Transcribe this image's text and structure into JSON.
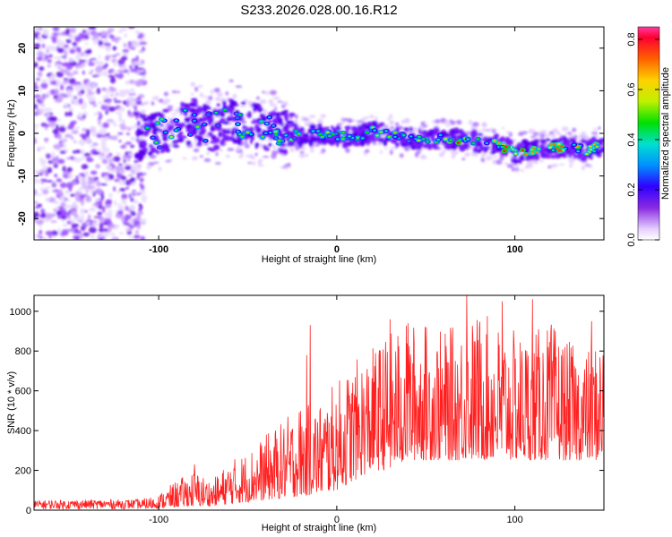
{
  "title": "S233.2026.028.00.16.R12",
  "chart_data": [
    {
      "type": "heatmap",
      "xlabel": "Height of straight line (km)",
      "ylabel": "Frequency (Hz)",
      "xlim": [
        -170,
        150
      ],
      "ylim": [
        -25,
        25
      ],
      "x_ticks": [
        -100,
        0,
        100
      ],
      "y_ticks": [
        -20,
        -10,
        0,
        10,
        20
      ],
      "colorbar": {
        "label": "Normalized spectral amplitude",
        "range": [
          0.0,
          0.85
        ],
        "ticks": [
          0.0,
          0.2,
          0.4,
          0.6,
          0.8
        ]
      },
      "ridge": [
        {
          "x": -110,
          "f": -1.0
        },
        {
          "x": -100,
          "f": 0.0
        },
        {
          "x": -90,
          "f": 1.5
        },
        {
          "x": -80,
          "f": 3.0
        },
        {
          "x": -70,
          "f": 1.0
        },
        {
          "x": -60,
          "f": 3.5
        },
        {
          "x": -45,
          "f": 1.5
        },
        {
          "x": -35,
          "f": 1.0
        },
        {
          "x": -25,
          "f": 0.0
        },
        {
          "x": -20,
          "f": -1.0
        },
        {
          "x": -10,
          "f": 0.0
        },
        {
          "x": 0,
          "f": -0.5
        },
        {
          "x": 10,
          "f": -1.0
        },
        {
          "x": 20,
          "f": 0.5
        },
        {
          "x": 30,
          "f": -0.5
        },
        {
          "x": 40,
          "f": -1.0
        },
        {
          "x": 50,
          "f": -1.5
        },
        {
          "x": 60,
          "f": -1.0
        },
        {
          "x": 70,
          "f": -1.5
        },
        {
          "x": 80,
          "f": -2.0
        },
        {
          "x": 90,
          "f": -2.5
        },
        {
          "x": 100,
          "f": -4.5
        },
        {
          "x": 110,
          "f": -4.0
        },
        {
          "x": 120,
          "f": -3.5
        },
        {
          "x": 130,
          "f": -3.0
        },
        {
          "x": 140,
          "f": -4.0
        },
        {
          "x": 148,
          "f": -3.0
        }
      ]
    },
    {
      "type": "line",
      "xlabel": "Height of straight line (km)",
      "ylabel": "SNR (10 * v/v)",
      "xlim": [
        -170,
        150
      ],
      "ylim": [
        0,
        1080
      ],
      "x_ticks": [
        -100,
        0,
        100
      ],
      "y_ticks": [
        0,
        200,
        400,
        600,
        800,
        1000
      ],
      "series": [
        {
          "name": "SNR",
          "color": "#ff2020",
          "envelope_x": [
            -170,
            -110,
            -100,
            -90,
            -80,
            -70,
            -60,
            -50,
            -40,
            -30,
            -20,
            -10,
            0,
            10,
            20,
            30,
            40,
            50,
            60,
            70,
            80,
            90,
            100,
            110,
            120,
            130,
            140,
            150
          ],
          "envelope_min": [
            5,
            5,
            10,
            15,
            20,
            20,
            30,
            40,
            50,
            60,
            70,
            80,
            100,
            150,
            200,
            200,
            250,
            250,
            250,
            250,
            250,
            250,
            250,
            250,
            250,
            250,
            250,
            250
          ],
          "envelope_max": [
            50,
            55,
            80,
            150,
            200,
            150,
            250,
            300,
            380,
            450,
            550,
            550,
            650,
            750,
            820,
            900,
            950,
            950,
            900,
            950,
            1000,
            950,
            900,
            900,
            950,
            850,
            800,
            900
          ],
          "spikes": [
            {
              "x": -80,
              "y": 230
            },
            {
              "x": -15,
              "y": 930
            },
            {
              "x": -17,
              "y": 780
            },
            {
              "x": 30,
              "y": 960
            },
            {
              "x": 40,
              "y": 940
            },
            {
              "x": 73,
              "y": 1080
            },
            {
              "x": 93,
              "y": 1050
            },
            {
              "x": 110,
              "y": 1060
            },
            {
              "x": 143,
              "y": 950
            }
          ]
        }
      ]
    }
  ]
}
